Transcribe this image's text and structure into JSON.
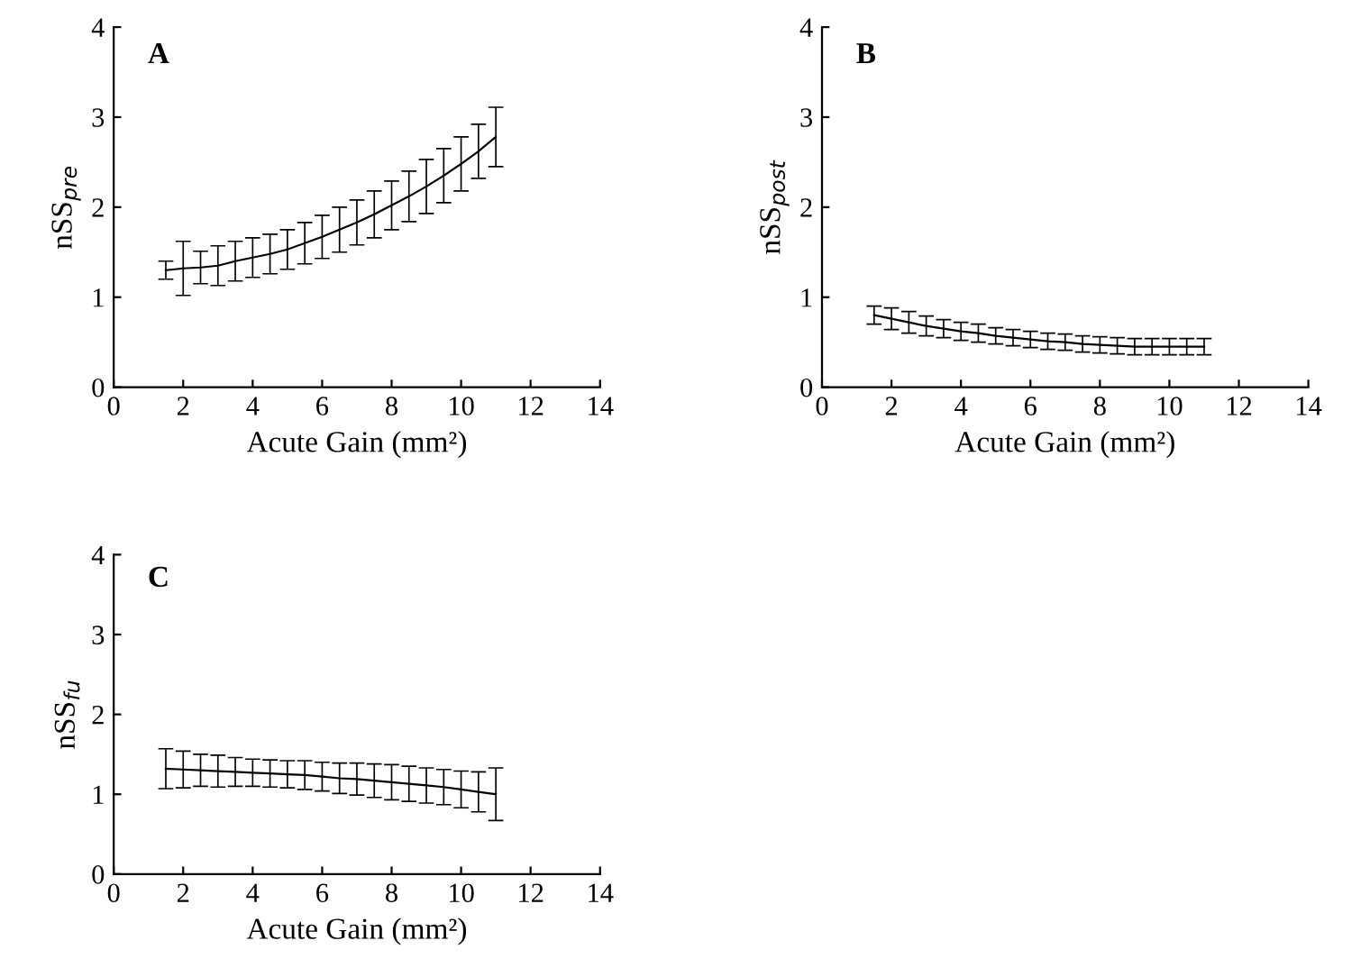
{
  "chart_data": [
    {
      "type": "line",
      "title": "A",
      "xlabel": "Acute Gain (mm²)",
      "ylabel": "nSS$_{pre}$",
      "x": [
        1.5,
        2,
        2.5,
        3,
        3.5,
        4,
        4.5,
        5,
        5.5,
        6,
        6.5,
        7,
        7.5,
        8,
        8.5,
        9,
        9.5,
        10,
        10.5,
        11
      ],
      "series": [
        {
          "color": "#000000",
          "values": [
            1.3,
            1.32,
            1.33,
            1.35,
            1.4,
            1.44,
            1.48,
            1.53,
            1.6,
            1.67,
            1.75,
            1.83,
            1.92,
            2.02,
            2.12,
            2.23,
            2.35,
            2.48,
            2.62,
            2.78
          ],
          "errors": [
            0.1,
            0.3,
            0.18,
            0.22,
            0.22,
            0.22,
            0.22,
            0.22,
            0.23,
            0.24,
            0.25,
            0.25,
            0.26,
            0.27,
            0.28,
            0.3,
            0.3,
            0.3,
            0.3,
            0.33
          ]
        }
      ],
      "xlim": [
        0,
        14
      ],
      "ylim": [
        0,
        4
      ],
      "xticks": [
        0,
        2,
        4,
        6,
        8,
        10,
        12,
        14
      ],
      "yticks": [
        0,
        1,
        2,
        3,
        4
      ],
      "grid": false,
      "legend": false,
      "marker": "none",
      "line_style": "solid"
    },
    {
      "type": "line",
      "title": "B",
      "xlabel": "Acute Gain (mm²)",
      "ylabel": "nSS$_{post}$",
      "x": [
        1.5,
        2,
        2.5,
        3,
        3.5,
        4,
        4.5,
        5,
        5.5,
        6,
        6.5,
        7,
        7.5,
        8,
        8.5,
        9,
        9.5,
        10,
        10.5,
        11
      ],
      "series": [
        {
          "color": "#000000",
          "values": [
            0.8,
            0.76,
            0.72,
            0.68,
            0.65,
            0.62,
            0.6,
            0.57,
            0.55,
            0.53,
            0.51,
            0.5,
            0.48,
            0.47,
            0.46,
            0.45,
            0.45,
            0.45,
            0.45,
            0.45
          ],
          "errors": [
            0.1,
            0.12,
            0.12,
            0.11,
            0.1,
            0.1,
            0.1,
            0.09,
            0.09,
            0.09,
            0.09,
            0.09,
            0.09,
            0.09,
            0.09,
            0.09,
            0.09,
            0.09,
            0.09,
            0.09
          ]
        }
      ],
      "xlim": [
        0,
        14
      ],
      "ylim": [
        0,
        4
      ],
      "xticks": [
        0,
        2,
        4,
        6,
        8,
        10,
        12,
        14
      ],
      "yticks": [
        0,
        1,
        2,
        3,
        4
      ],
      "grid": false,
      "legend": false,
      "marker": "none",
      "line_style": "solid"
    },
    {
      "type": "line",
      "title": "C",
      "xlabel": "Acute Gain (mm²)",
      "ylabel": "nSS$_{fu}$",
      "x": [
        1.5,
        2,
        2.5,
        3,
        3.5,
        4,
        4.5,
        5,
        5.5,
        6,
        6.5,
        7,
        7.5,
        8,
        8.5,
        9,
        9.5,
        10,
        10.5,
        11
      ],
      "series": [
        {
          "color": "#000000",
          "values": [
            1.32,
            1.31,
            1.3,
            1.29,
            1.28,
            1.27,
            1.26,
            1.25,
            1.24,
            1.22,
            1.2,
            1.19,
            1.17,
            1.15,
            1.13,
            1.11,
            1.09,
            1.06,
            1.03,
            1.0
          ],
          "errors": [
            0.25,
            0.23,
            0.2,
            0.2,
            0.18,
            0.17,
            0.17,
            0.17,
            0.18,
            0.18,
            0.19,
            0.2,
            0.21,
            0.22,
            0.22,
            0.22,
            0.22,
            0.23,
            0.25,
            0.33
          ]
        }
      ],
      "xlim": [
        0,
        14
      ],
      "ylim": [
        0,
        4
      ],
      "xticks": [
        0,
        2,
        4,
        6,
        8,
        10,
        12,
        14
      ],
      "yticks": [
        0,
        1,
        2,
        3,
        4
      ],
      "grid": false,
      "legend": false,
      "marker": "none",
      "line_style": "solid"
    }
  ]
}
